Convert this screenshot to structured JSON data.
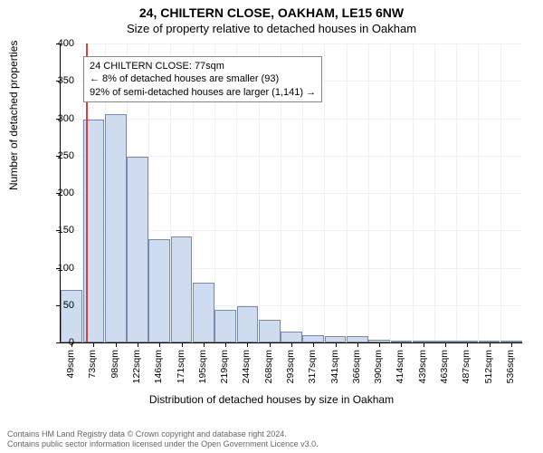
{
  "title_main": "24, CHILTERN CLOSE, OAKHAM, LE15 6NW",
  "title_sub": "Size of property relative to detached houses in Oakham",
  "annotation": {
    "line1": "24 CHILTERN CLOSE: 77sqm",
    "line2": "← 8% of detached houses are smaller (93)",
    "line3": "92% of semi-detached houses are larger (1,141) →"
  },
  "chart": {
    "type": "histogram",
    "y_axis_label": "Number of detached properties",
    "x_axis_label": "Distribution of detached houses by size in Oakham",
    "ylim": [
      0,
      400
    ],
    "ytick_step": 50,
    "background_color": "#ffffff",
    "grid_color": "#eef0f5",
    "bar_fill": "#cfdcf0",
    "bar_stroke": "#7a8aa8",
    "ref_line_color": "#d94040",
    "ref_line_x_sqm": 77,
    "x_start_sqm": 49,
    "x_bin_width_sqm": 24.5,
    "x_labels": [
      "49sqm",
      "73sqm",
      "98sqm",
      "122sqm",
      "146sqm",
      "171sqm",
      "195sqm",
      "219sqm",
      "244sqm",
      "268sqm",
      "293sqm",
      "317sqm",
      "341sqm",
      "366sqm",
      "390sqm",
      "414sqm",
      "439sqm",
      "463sqm",
      "487sqm",
      "512sqm",
      "536sqm"
    ],
    "values": [
      70,
      298,
      305,
      248,
      138,
      142,
      80,
      44,
      48,
      30,
      14,
      10,
      8,
      8,
      4,
      2,
      0,
      0,
      0,
      0,
      2
    ]
  },
  "footer": {
    "line1": "Contains HM Land Registry data © Crown copyright and database right 2024.",
    "line2": "Contains public sector information licensed under the Open Government Licence v3.0."
  }
}
